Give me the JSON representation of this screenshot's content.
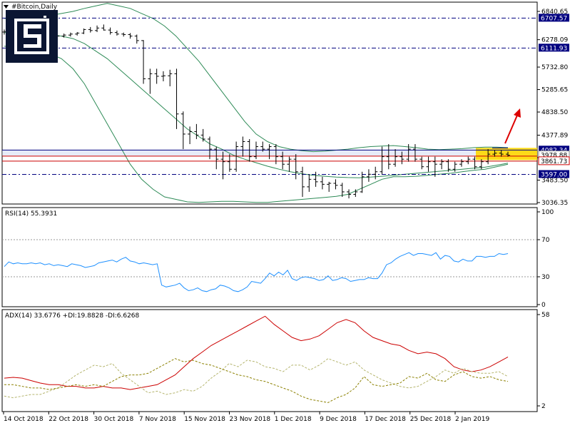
{
  "window": {
    "title": "#Bitcoin,Daily",
    "menu_icon": "triangle-down-icon"
  },
  "logo": {
    "name": "brand-logo-icon",
    "color": "#0b1633"
  },
  "colors": {
    "candles": "#000000",
    "bollinger": "#2e8b57",
    "rsi": "#1e90ff",
    "adx": "#cc0000",
    "plus_di": "#b5b56e",
    "minus_di": "#8b8000",
    "resistance": "#cc0000",
    "support": "#000080",
    "zone": "#ffd700",
    "arrow": "#dd0000"
  },
  "price_panel": {
    "ticks": [
      "6840.65",
      "6278.09",
      "5732.80",
      "5285.65",
      "4838.50",
      "4377.89",
      "3930.74",
      "3483.50",
      "3036.35"
    ],
    "ylim": [
      3036.35,
      6840.65
    ],
    "level_labels": [
      {
        "text": "6707.57",
        "value": 6707.57,
        "style": "dash"
      },
      {
        "text": "6111.93",
        "value": 6111.93,
        "style": "dash"
      },
      {
        "text": "4082.34",
        "value": 4082.34,
        "style": "zone"
      },
      {
        "text": "3978.88",
        "value": 3978.88,
        "style": "current"
      },
      {
        "text": "3861.73",
        "value": 3861.73,
        "style": "red"
      },
      {
        "text": "3597.00",
        "value": 3597.0,
        "style": "dash"
      }
    ]
  },
  "rsi_panel": {
    "label": "RSI(14) 55.3931",
    "ticks": [
      "100",
      "70",
      "30",
      "0"
    ]
  },
  "adx_panel": {
    "label": "ADX(14) 33.6776 +DI:19.8828 -DI:6.6268",
    "ticks": [
      "58",
      "2"
    ]
  },
  "x_axis": {
    "labels": [
      "14 Oct 2018",
      "22 Oct 2018",
      "30 Oct 2018",
      "7 Nov 2018",
      "15 Nov 2018",
      "23 Nov 2018",
      "1 Dec 2018",
      "9 Dec 2018",
      "17 Dec 2018",
      "25 Dec 2018",
      "2 Jan 2019"
    ]
  },
  "chart_data": [
    {
      "type": "candlestick",
      "title": "#Bitcoin,Daily",
      "ylim": [
        3036.35,
        6840.65
      ],
      "ohlc": [
        [
          6430,
          6480,
          6380,
          6440
        ],
        [
          6440,
          6470,
          6400,
          6420
        ],
        [
          6420,
          6460,
          6390,
          6430
        ],
        [
          6430,
          6500,
          6410,
          6470
        ],
        [
          6470,
          6490,
          6420,
          6450
        ],
        [
          6450,
          6480,
          6410,
          6440
        ],
        [
          6440,
          6470,
          6400,
          6430
        ],
        [
          6430,
          6460,
          6300,
          6340
        ],
        [
          6340,
          6380,
          6290,
          6350
        ],
        [
          6350,
          6400,
          6320,
          6370
        ],
        [
          6370,
          6420,
          6340,
          6390
        ],
        [
          6390,
          6430,
          6360,
          6410
        ],
        [
          6410,
          6500,
          6390,
          6480
        ],
        [
          6480,
          6530,
          6420,
          6460
        ],
        [
          6460,
          6560,
          6430,
          6510
        ],
        [
          6510,
          6580,
          6460,
          6470
        ],
        [
          6470,
          6520,
          6380,
          6420
        ],
        [
          6420,
          6460,
          6360,
          6390
        ],
        [
          6390,
          6420,
          6340,
          6380
        ],
        [
          6380,
          6410,
          6300,
          6350
        ],
        [
          6350,
          6380,
          6200,
          6260
        ],
        [
          6260,
          6270,
          5400,
          5500
        ],
        [
          5500,
          5700,
          5200,
          5600
        ],
        [
          5600,
          5700,
          5400,
          5550
        ],
        [
          5550,
          5650,
          5450,
          5560
        ],
        [
          5560,
          5680,
          5350,
          5600
        ],
        [
          5600,
          5700,
          4500,
          4800
        ],
        [
          4800,
          4850,
          4100,
          4400
        ],
        [
          4400,
          4550,
          4200,
          4450
        ],
        [
          4450,
          4600,
          4300,
          4380
        ],
        [
          4380,
          4500,
          4250,
          4300
        ],
        [
          4300,
          4350,
          3900,
          4100
        ],
        [
          4100,
          4150,
          3700,
          3900
        ],
        [
          3900,
          4050,
          3500,
          3850
        ],
        [
          3850,
          4000,
          3650,
          3700
        ],
        [
          3700,
          4250,
          3650,
          4150
        ],
        [
          4150,
          4350,
          3950,
          4250
        ],
        [
          4250,
          4300,
          3850,
          3950
        ],
        [
          3950,
          4250,
          3900,
          4150
        ],
        [
          4150,
          4250,
          4050,
          4100
        ],
        [
          4100,
          4200,
          3900,
          4150
        ],
        [
          4150,
          4200,
          3800,
          3950
        ],
        [
          3950,
          4050,
          3700,
          3800
        ],
        [
          3800,
          3950,
          3650,
          3900
        ],
        [
          3900,
          4000,
          3500,
          3650
        ],
        [
          3650,
          3750,
          3150,
          3350
        ],
        [
          3350,
          3600,
          3250,
          3500
        ],
        [
          3500,
          3650,
          3350,
          3450
        ],
        [
          3450,
          3550,
          3300,
          3400
        ],
        [
          3400,
          3450,
          3250,
          3420
        ],
        [
          3420,
          3500,
          3300,
          3380
        ],
        [
          3380,
          3430,
          3150,
          3250
        ],
        [
          3250,
          3300,
          3120,
          3200
        ],
        [
          3200,
          3300,
          3150,
          3250
        ],
        [
          3250,
          3650,
          3230,
          3550
        ],
        [
          3550,
          3700,
          3450,
          3600
        ],
        [
          3600,
          3750,
          3500,
          3650
        ],
        [
          3650,
          4150,
          3600,
          3950
        ],
        [
          3950,
          4200,
          3700,
          3800
        ],
        [
          3800,
          4100,
          3750,
          3950
        ],
        [
          3950,
          4050,
          3800,
          3900
        ],
        [
          3900,
          4200,
          3850,
          4100
        ],
        [
          4100,
          4200,
          3850,
          3900
        ],
        [
          3900,
          3950,
          3700,
          3750
        ],
        [
          3750,
          3950,
          3650,
          3850
        ],
        [
          3850,
          3950,
          3550,
          3800
        ],
        [
          3800,
          3900,
          3700,
          3850
        ],
        [
          3850,
          3900,
          3650,
          3700
        ],
        [
          3700,
          3850,
          3650,
          3800
        ],
        [
          3800,
          3900,
          3750,
          3850
        ],
        [
          3850,
          3950,
          3800,
          3900
        ],
        [
          3900,
          3950,
          3700,
          3750
        ],
        [
          3750,
          3900,
          3700,
          3850
        ],
        [
          3850,
          4100,
          3800,
          4000
        ],
        [
          4000,
          4080,
          3950,
          4020
        ],
        [
          4020,
          4080,
          3950,
          4000
        ],
        [
          4000,
          4050,
          3950,
          3978
        ]
      ],
      "bollinger": {
        "upper": [
          6700,
          6710,
          6720,
          6740,
          6760,
          6800,
          6840,
          6900,
          6950,
          7000,
          6950,
          6900,
          6800,
          6700,
          6550,
          6350,
          6100,
          5850,
          5550,
          5250,
          4950,
          4650,
          4400,
          4250,
          4150,
          4100,
          4070,
          4050,
          4060,
          4080,
          4100,
          4130,
          4150,
          4160,
          4170,
          4150,
          4130,
          4100,
          4090,
          4100,
          4110,
          4130,
          4140,
          4140,
          4130
        ],
        "middle": [
          6420,
          6410,
          6400,
          6390,
          6380,
          6350,
          6300,
          6200,
          6050,
          5900,
          5700,
          5500,
          5300,
          5100,
          4900,
          4700,
          4500,
          4350,
          4200,
          4100,
          3980,
          3900,
          3830,
          3760,
          3700,
          3650,
          3610,
          3580,
          3560,
          3545,
          3535,
          3530,
          3545,
          3560,
          3580,
          3600,
          3620,
          3640,
          3660,
          3680,
          3700,
          3720,
          3740,
          3780,
          3820
        ],
        "lower": [
          6150,
          6120,
          6100,
          6050,
          6000,
          5900,
          5700,
          5400,
          5000,
          4600,
          4200,
          3800,
          3500,
          3300,
          3150,
          3100,
          3050,
          3040,
          3050,
          3060,
          3060,
          3050,
          3040,
          3040,
          3060,
          3080,
          3100,
          3120,
          3140,
          3160,
          3200,
          3300,
          3400,
          3500,
          3550,
          3550,
          3560,
          3580,
          3600,
          3620,
          3650,
          3680,
          3700,
          3750,
          3800
        ]
      },
      "levels": [
        {
          "value": 6707.57,
          "style": "dash"
        },
        {
          "value": 6111.93,
          "style": "dash"
        },
        {
          "value": 4082.34,
          "style": "zone"
        },
        {
          "value": 3861.73,
          "style": "red"
        },
        {
          "value": 3597.0,
          "style": "dash"
        }
      ]
    },
    {
      "type": "line",
      "title": "RSI(14) 55.3931",
      "ylim": [
        0,
        100
      ],
      "levels": [
        70,
        30
      ],
      "values": [
        41,
        46,
        44,
        45,
        44,
        44,
        45,
        44,
        45,
        43,
        44,
        42,
        43,
        42,
        41,
        44,
        43,
        42,
        40,
        41,
        42,
        45,
        46,
        47,
        48,
        46,
        49,
        51,
        47,
        46,
        44,
        45,
        44,
        43,
        44,
        21,
        19,
        20,
        21,
        23,
        18,
        15,
        16,
        18,
        15,
        14,
        16,
        17,
        21,
        20,
        18,
        15,
        14,
        16,
        19,
        25,
        24,
        23,
        28,
        34,
        31,
        35,
        32,
        37,
        28,
        26,
        29,
        30,
        29,
        28,
        26,
        27,
        31,
        26,
        27,
        29,
        28,
        25,
        26,
        27,
        27,
        29,
        28,
        28,
        34,
        43,
        45,
        49,
        52,
        54,
        56,
        53,
        55,
        55,
        54,
        53,
        56,
        49,
        53,
        52,
        47,
        46,
        49,
        47,
        47,
        52,
        52,
        51,
        52,
        52,
        55,
        54,
        55
      ]
    },
    {
      "type": "line",
      "title": "ADX(14) 33.6776 +DI:19.8828 -DI:6.6268",
      "ylim": [
        2,
        58
      ],
      "series": [
        {
          "name": "ADX",
          "values": [
            19,
            19.5,
            19,
            17.5,
            16,
            15,
            15,
            14,
            14,
            13,
            13,
            14,
            13,
            13,
            12,
            13,
            14,
            15,
            18,
            21,
            26,
            31,
            35,
            39,
            42,
            45,
            48,
            51,
            54,
            57,
            52,
            48,
            44,
            42,
            43,
            45,
            49,
            53,
            55,
            53,
            48,
            44,
            42,
            40,
            39,
            36,
            34,
            35,
            34,
            31,
            26,
            24,
            23,
            24,
            26,
            29,
            32
          ]
        },
        {
          "name": "+DI",
          "values": [
            8,
            7,
            8,
            9,
            9,
            11,
            13,
            17,
            21,
            24,
            27,
            26,
            28,
            22,
            18,
            14,
            10,
            11,
            9,
            10,
            12,
            11,
            14,
            19,
            23,
            28,
            26,
            30,
            29,
            26,
            25,
            23,
            27,
            27,
            24,
            27,
            31,
            29,
            27,
            29,
            24,
            21,
            18,
            16,
            14,
            13,
            14,
            17,
            20,
            24,
            22,
            25,
            23,
            22,
            22,
            23,
            20
          ]
        },
        {
          "name": "-DI",
          "values": [
            15,
            15,
            14,
            13,
            13,
            12,
            13,
            14,
            15,
            14,
            15,
            14,
            17,
            20,
            21,
            21,
            22,
            25,
            28,
            31,
            29,
            30,
            28,
            27,
            25,
            23,
            21,
            20,
            18,
            17,
            15,
            13,
            11,
            8,
            6,
            5,
            4,
            7,
            9,
            13,
            20,
            15,
            14,
            15,
            16,
            20,
            19,
            22,
            18,
            17,
            21,
            23,
            20,
            19,
            20,
            18,
            17
          ]
        }
      ]
    }
  ]
}
